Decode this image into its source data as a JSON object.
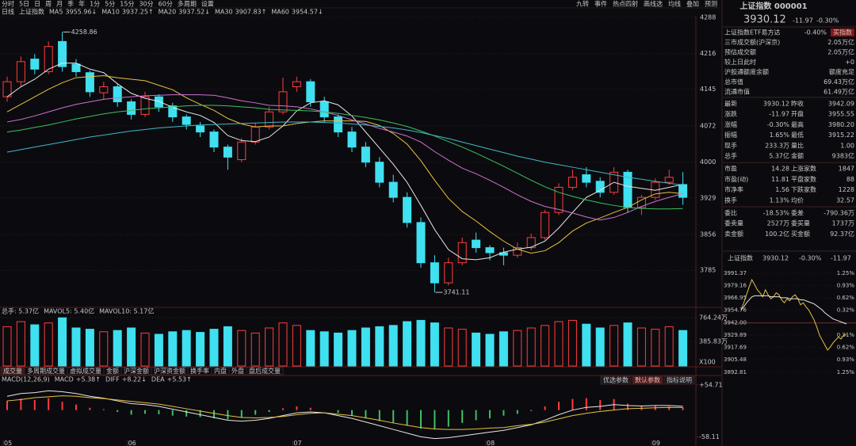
{
  "toolbar": {
    "left": [
      "分时",
      "5日",
      "日",
      "周",
      "月",
      "季",
      "年",
      "1分",
      "5分",
      "15分",
      "30分",
      "60分",
      "多周期",
      "设置"
    ],
    "right": [
      "九转",
      "事件",
      "热点四射",
      "画线选",
      "均线",
      "叠加",
      "预测"
    ]
  },
  "chart_data": [
    {
      "type": "candlestick",
      "period": "日线",
      "title": "上证指数",
      "categories": [
        "05",
        null,
        null,
        null,
        null,
        null,
        null,
        null,
        null,
        "06",
        null,
        null,
        null,
        null,
        null,
        null,
        null,
        null,
        null,
        null,
        null,
        "07",
        null,
        null,
        null,
        null,
        null,
        null,
        null,
        null,
        null,
        null,
        null,
        null,
        null,
        "08",
        null,
        null,
        null,
        null,
        null,
        null,
        null,
        null,
        null,
        null,
        null,
        "09",
        null,
        null
      ],
      "ohlc": [
        [
          4130,
          4170,
          4120,
          4160
        ],
        [
          4160,
          4210,
          4150,
          4200
        ],
        [
          4205,
          4215,
          4175,
          4185
        ],
        [
          4180,
          4240,
          4175,
          4230
        ],
        [
          4240,
          4258.86,
          4180,
          4190
        ],
        [
          4195,
          4205,
          4170,
          4180
        ],
        [
          4178,
          4182,
          4130,
          4140
        ],
        [
          4138,
          4160,
          4125,
          4150
        ],
        [
          4150,
          4155,
          4110,
          4120
        ],
        [
          4120,
          4125,
          4085,
          4095
        ],
        [
          4095,
          4140,
          4090,
          4130
        ],
        [
          4130,
          4135,
          4100,
          4110
        ],
        [
          4112,
          4118,
          4080,
          4090
        ],
        [
          4090,
          4095,
          4065,
          4075
        ],
        [
          4072,
          4080,
          4050,
          4060
        ],
        [
          4060,
          4065,
          4020,
          4030
        ],
        [
          4030,
          4035,
          3985,
          4010
        ],
        [
          4005,
          4048,
          4000,
          4040
        ],
        [
          4040,
          4078,
          4035,
          4070
        ],
        [
          4070,
          4110,
          4065,
          4100
        ],
        [
          4100,
          4168,
          4095,
          4140
        ],
        [
          4150,
          4170,
          4140,
          4160
        ],
        [
          4160,
          4165,
          4110,
          4120
        ],
        [
          4120,
          4130,
          4080,
          4090
        ],
        [
          4090,
          4095,
          4050,
          4060
        ],
        [
          4060,
          4070,
          4020,
          4030
        ],
        [
          4030,
          4040,
          3990,
          4000
        ],
        [
          4000,
          4010,
          3950,
          3960
        ],
        [
          3960,
          3975,
          3920,
          3930
        ],
        [
          3930,
          3940,
          3870,
          3880
        ],
        [
          3880,
          3890,
          3790,
          3800
        ],
        [
          3800,
          3815,
          3741.11,
          3760
        ],
        [
          3760,
          3810,
          3755,
          3800
        ],
        [
          3800,
          3850,
          3795,
          3840
        ],
        [
          3845,
          3860,
          3820,
          3830
        ],
        [
          3830,
          3835,
          3805,
          3820
        ],
        [
          3820,
          3830,
          3795,
          3815
        ],
        [
          3815,
          3840,
          3810,
          3830
        ],
        [
          3830,
          3858,
          3825,
          3850
        ],
        [
          3850,
          3905,
          3845,
          3900
        ],
        [
          3900,
          3958,
          3895,
          3950
        ],
        [
          3950,
          3985,
          3945,
          3970
        ],
        [
          3975,
          3990,
          3950,
          3960
        ],
        [
          3962,
          3970,
          3930,
          3940
        ],
        [
          3940,
          3990,
          3935,
          3980
        ],
        [
          3980,
          3985,
          3900,
          3910
        ],
        [
          3910,
          3935,
          3895,
          3930
        ],
        [
          3930,
          3968,
          3925,
          3960
        ],
        [
          3960,
          3985,
          3955,
          3970
        ],
        [
          3955.55,
          3980.2,
          3915.22,
          3930.12
        ]
      ],
      "ylim": [
        3716,
        4291
      ],
      "yticks": [
        4288,
        4216,
        4145,
        4072,
        4000,
        3929,
        3856,
        3785
      ],
      "series": [
        {
          "name": "MA5",
          "color": "#e8e8e8",
          "value_label": "3955.96↓",
          "values": [
            4130,
            4150,
            4165,
            4185,
            4197,
            4197,
            4185,
            4178,
            4156,
            4137,
            4127,
            4121,
            4109,
            4100,
            4093,
            4079,
            4053,
            4043,
            4041,
            4050,
            4072,
            4102,
            4118,
            4122,
            4114,
            4092,
            4060,
            4028,
            3996,
            3960,
            3914,
            3866,
            3826,
            3808,
            3806,
            3810,
            3821,
            3827,
            3831,
            3843,
            3869,
            3900,
            3930,
            3944,
            3960,
            3952,
            3948,
            3944,
            3950,
            3955.96
          ]
        },
        {
          "name": "MA10",
          "color": "#e8c140",
          "value_label": "3937.25↑",
          "values": [
            4100,
            4115,
            4130,
            4145,
            4158,
            4168,
            4170,
            4172,
            4168,
            4165,
            4162,
            4153,
            4144,
            4128,
            4115,
            4103,
            4087,
            4076,
            4070,
            4072,
            4072,
            4077,
            4080,
            4082,
            4082,
            4082,
            4081,
            4073,
            4057,
            4036,
            4003,
            3964,
            3928,
            3902,
            3883,
            3862,
            3843,
            3827,
            3819,
            3824,
            3840,
            3863,
            3879,
            3889,
            3900,
            3910,
            3925,
            3937,
            3940,
            3937.25
          ]
        },
        {
          "name": "MA20",
          "color": "#d070d0",
          "value_label": "3937.52↓",
          "values": [
            4080,
            4085,
            4092,
            4100,
            4108,
            4115,
            4120,
            4125,
            4128,
            4130,
            4132,
            4133,
            4134,
            4134,
            4134,
            4133,
            4128,
            4122,
            4118,
            4113,
            4112,
            4110,
            4106,
            4100,
            4093,
            4084,
            4076,
            4067,
            4060,
            4052,
            4040,
            4021,
            4004,
            3988,
            3977,
            3964,
            3950,
            3935,
            3922,
            3912,
            3906,
            3899,
            3891,
            3885,
            3890,
            3900,
            3912,
            3922,
            3930,
            3937.52
          ]
        },
        {
          "name": "MA30",
          "color": "#3ec060",
          "value_label": "3907.83↑",
          "values": [
            4060,
            4064,
            4069,
            4074,
            4080,
            4086,
            4091,
            4096,
            4100,
            4103,
            4106,
            4108,
            4110,
            4112,
            4113,
            4113,
            4112,
            4110,
            4108,
            4105,
            4104,
            4103,
            4102,
            4100,
            4097,
            4093,
            4089,
            4084,
            4078,
            4071,
            4062,
            4052,
            4041,
            4030,
            4018,
            4005,
            3992,
            3978,
            3964,
            3951,
            3940,
            3932,
            3925,
            3919,
            3914,
            3910,
            3908,
            3907,
            3907,
            3907.83
          ]
        },
        {
          "name": "MA60",
          "color": "#40b8c8",
          "value_label": "3954.57↓",
          "values": [
            4020,
            4025,
            4030,
            4035,
            4040,
            4045,
            4050,
            4054,
            4058,
            4062,
            4065,
            4068,
            4070,
            4072,
            4074,
            4075,
            4076,
            4077,
            4078,
            4079,
            4080,
            4080,
            4080,
            4079,
            4078,
            4076,
            4074,
            4071,
            4068,
            4064,
            4059,
            4053,
            4047,
            4040,
            4033,
            4026,
            4019,
            4012,
            4006,
            4000,
            3995,
            3990,
            3985,
            3980,
            3975,
            3970,
            3966,
            3962,
            3958,
            3954.57
          ]
        }
      ]
    },
    {
      "type": "bar",
      "legend": [
        "总手: 5.37亿",
        "MAVOL5: 5.40亿",
        "MAVOL10: 5.17亿"
      ],
      "unit_label": "X100",
      "values": [
        620,
        700,
        650,
        680,
        760,
        600,
        580,
        540,
        560,
        600,
        520,
        500,
        540,
        560,
        530,
        580,
        620,
        560,
        520,
        600,
        680,
        640,
        560,
        540,
        520,
        560,
        600,
        620,
        640,
        700,
        720,
        680,
        600,
        580,
        520,
        500,
        540,
        560,
        600,
        640,
        700,
        720,
        660,
        600,
        640,
        680,
        600,
        580,
        620,
        560
      ],
      "ylim": [
        0,
        800
      ],
      "yticks": [
        {
          "value": 764.24,
          "label": "764.24万"
        },
        {
          "value": 385.83,
          "label": "385.83万"
        }
      ]
    },
    {
      "type": "macd",
      "title": "MACD(12,26,9)",
      "buttons": [
        "优选参数",
        "默认参数",
        "指标说明"
      ],
      "ylim": [
        -66,
        58
      ],
      "yticks": [
        {
          "value": 54.71,
          "label": "+54.71"
        },
        -58.11
      ],
      "series": [
        {
          "name": "MACD",
          "value_label": "+5.38↑",
          "color": "#ff3c3c",
          "values": [
            20,
            25,
            22,
            26,
            18,
            12,
            5,
            2,
            -4,
            -10,
            -8,
            -9,
            -12,
            -14,
            -15,
            -18,
            -20,
            -16,
            -10,
            -4,
            4,
            8,
            5,
            0,
            -6,
            -12,
            -18,
            -24,
            -28,
            -34,
            -40,
            -42,
            -36,
            -28,
            -22,
            -18,
            -12,
            -8,
            -2,
            8,
            18,
            24,
            26,
            22,
            24,
            14,
            10,
            10,
            8,
            5.38
          ]
        },
        {
          "name": "DIFF",
          "value_label": "+8.22↓",
          "color": "#e8e8e8",
          "values": [
            30,
            36,
            38,
            42,
            40,
            36,
            30,
            26,
            20,
            14,
            12,
            8,
            2,
            -4,
            -10,
            -16,
            -22,
            -24,
            -22,
            -18,
            -12,
            -6,
            -4,
            -6,
            -12,
            -18,
            -26,
            -34,
            -42,
            -50,
            -58,
            -62,
            -60,
            -56,
            -52,
            -48,
            -44,
            -38,
            -32,
            -22,
            -10,
            0,
            6,
            8,
            12,
            10,
            9,
            10,
            10,
            8.22
          ]
        },
        {
          "name": "DEA",
          "value_label": "+5.53↑",
          "color": "#e8c140",
          "values": [
            20,
            23,
            27,
            29,
            31,
            30,
            27,
            25,
            22,
            19,
            16,
            13,
            8,
            3,
            -2,
            -7,
            -12,
            -16,
            -17,
            -16,
            -14,
            -10,
            -7,
            -6,
            -9,
            -12,
            -17,
            -22,
            -28,
            -33,
            -38,
            -41,
            -42,
            -42,
            -41,
            -39,
            -38,
            -34,
            -31,
            -26,
            -19,
            -12,
            -7,
            -3,
            0,
            3,
            4,
            5,
            6,
            5.53
          ]
        }
      ]
    }
  ],
  "tabs": [
    "成交量",
    "多周期成交量",
    "虚拟成交量",
    "金额",
    "沪深金额",
    "沪深资金额",
    "换手率",
    "内盘",
    "外盘",
    "盘后成交量"
  ],
  "quote": {
    "title": "上证指数 000001",
    "price": "3930.12",
    "change": "-11.97",
    "pct": "-0.30%",
    "info": [
      [
        "上证指数ETF易方达",
        "-0.40%"
      ],
      [
        "三市成交额(沪深京)",
        "2.05万亿"
      ],
      [
        "预估成交额",
        "2.05万亿"
      ],
      [
        "较上日此时",
        "+0"
      ],
      [
        "沪股通额度余额",
        "额度充足"
      ],
      [
        "总市值",
        "69.43万亿"
      ],
      [
        "流通市值",
        "61.49万亿"
      ]
    ],
    "button": "买指数",
    "grid": [
      [
        [
          "最新",
          "3930.12",
          "昨收",
          "3942.09"
        ],
        [
          "涨跌",
          "-11.97",
          "开盘",
          "3955.55"
        ],
        [
          "涨幅",
          "-0.30%",
          "最高",
          "3980.20"
        ],
        [
          "振幅",
          "1.65%",
          "最低",
          "3915.22"
        ],
        [
          "现手",
          "233.3万",
          "量比",
          "1.00"
        ],
        [
          "总手",
          "5.37亿",
          "金额",
          "9383亿"
        ]
      ],
      [
        [
          "市盈",
          "14.28",
          "上涨家数",
          "1847"
        ],
        [
          "市盈(动)",
          "11.81",
          "平盘家数",
          "88"
        ],
        [
          "市净率",
          "1.56",
          "下跌家数",
          "1228"
        ],
        [
          "换手",
          "1.13%",
          "均价",
          "32.57"
        ]
      ],
      [
        [
          "委比",
          "-18.53%",
          "委差",
          "-790.36万"
        ],
        [
          "委卖量",
          "2527万",
          "委买量",
          "1737万"
        ],
        [
          "卖金额",
          "100.2亿",
          "买金额",
          "92.37亿"
        ]
      ]
    ]
  },
  "intraday": {
    "title": "上证指数",
    "price": "3930.12",
    "pct": "-0.30%",
    "change": "-11.97",
    "ylim": [
      3892.81,
      3991.37
    ],
    "yticks": [
      3991.37,
      3979.16,
      3966.95,
      3954.76,
      {
        "value": 3942,
        "label": "3942.00"
      },
      3929.89,
      3917.69,
      3905.48,
      3892.81
    ],
    "right_labels": [
      "1.25%",
      "0.93%",
      "0.62%",
      "0.32%",
      "0.31%",
      "0.62%",
      "0.93%",
      "1.25%"
    ],
    "series": [
      {
        "name": "price",
        "color": "#e8c140",
        "values": [
          3955,
          3962,
          3970,
          3978,
          3985,
          3980,
          3975,
          3972,
          3968,
          3975,
          3970,
          3966,
          3968,
          3972,
          3970,
          3965,
          3962,
          3966,
          3964,
          3968,
          3970,
          3966,
          3960,
          3962,
          3958,
          3955,
          3950,
          3945,
          3938,
          3930,
          3925,
          3920,
          3915,
          3918,
          3922,
          3925,
          3928,
          3926,
          3930,
          3930.12
        ]
      },
      {
        "name": "avg",
        "color": "#e8e8e8",
        "values": [
          3955,
          3958,
          3962,
          3965,
          3968,
          3969,
          3969,
          3969,
          3969,
          3969,
          3969,
          3968,
          3968,
          3968,
          3968,
          3967,
          3967,
          3967,
          3966,
          3966,
          3966,
          3966,
          3965,
          3965,
          3964,
          3963,
          3962,
          3961,
          3959,
          3957,
          3955,
          3952,
          3950,
          3948,
          3946,
          3945,
          3944,
          3943,
          3942,
          3941
        ]
      }
    ]
  }
}
